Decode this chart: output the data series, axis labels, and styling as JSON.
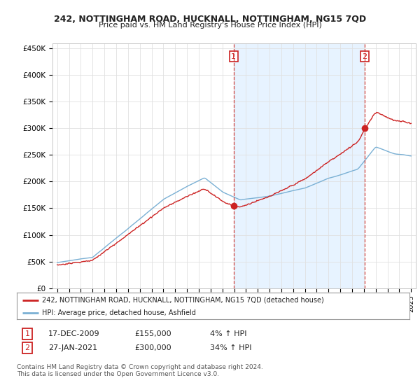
{
  "title": "242, NOTTINGHAM ROAD, HUCKNALL, NOTTINGHAM, NG15 7QD",
  "subtitle": "Price paid vs. HM Land Registry's House Price Index (HPI)",
  "ylabel_ticks": [
    "£0",
    "£50K",
    "£100K",
    "£150K",
    "£200K",
    "£250K",
    "£300K",
    "£350K",
    "£400K",
    "£450K"
  ],
  "ytick_values": [
    0,
    50000,
    100000,
    150000,
    200000,
    250000,
    300000,
    350000,
    400000,
    450000
  ],
  "ylim": [
    0,
    460000
  ],
  "hpi_color": "#7ab0d4",
  "price_color": "#cc2222",
  "shade_color": "#ddeeff",
  "transaction1_date": 2009.96,
  "transaction1_price": 155000,
  "transaction1_label": "1",
  "transaction2_date": 2021.07,
  "transaction2_price": 300000,
  "transaction2_label": "2",
  "legend_line1": "242, NOTTINGHAM ROAD, HUCKNALL, NOTTINGHAM, NG15 7QD (detached house)",
  "legend_line2": "HPI: Average price, detached house, Ashfield",
  "table_row1": [
    "1",
    "17-DEC-2009",
    "£155,000",
    "4% ↑ HPI"
  ],
  "table_row2": [
    "2",
    "27-JAN-2021",
    "£300,000",
    "34% ↑ HPI"
  ],
  "footnote": "Contains HM Land Registry data © Crown copyright and database right 2024.\nThis data is licensed under the Open Government Licence v3.0.",
  "background_color": "#ffffff",
  "grid_color": "#e0e0e0"
}
